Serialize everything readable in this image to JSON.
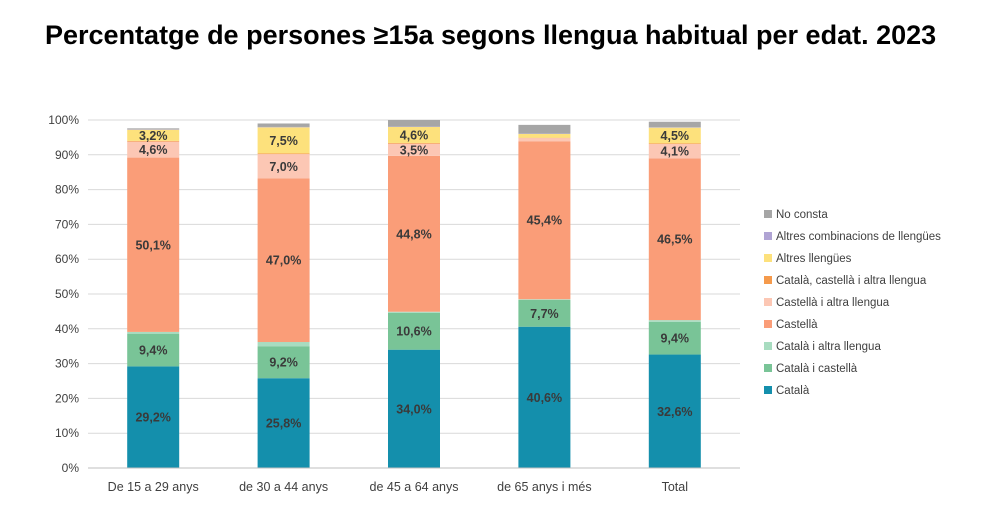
{
  "chart_data": {
    "type": "bar",
    "stacked": true,
    "title": "Percentatge de persones ≥15a segons llengua habitual per edat. 2023",
    "xlabel": "",
    "ylabel": "",
    "ylim": [
      0,
      100
    ],
    "yticks": [
      "0%",
      "10%",
      "20%",
      "30%",
      "40%",
      "50%",
      "60%",
      "70%",
      "80%",
      "90%",
      "100%"
    ],
    "grid": true,
    "legend_position": "right",
    "categories": [
      "De 15 a 29 anys",
      "de 30 a 44 anys",
      "de 45 a 64 anys",
      "de 65 anys i més",
      "Total"
    ],
    "series": [
      {
        "name": "Català",
        "color": "#148fac",
        "values": [
          29.2,
          25.8,
          34.0,
          40.6,
          32.6
        ],
        "labels": [
          "29,2%",
          "25,8%",
          "34,0%",
          "40,6%",
          "32,6%"
        ]
      },
      {
        "name": "Català i castellà",
        "color": "#79c497",
        "values": [
          9.4,
          9.2,
          10.6,
          7.7,
          9.4
        ],
        "labels": [
          "9,4%",
          "9,2%",
          "10,6%",
          "7,7%",
          "9,4%"
        ]
      },
      {
        "name": "Català i altra llengua",
        "color": "#a8dcc0",
        "values": [
          0.5,
          1.2,
          0.3,
          0.2,
          0.5
        ],
        "labels": [
          "",
          "",
          "",
          "",
          ""
        ]
      },
      {
        "name": "Castellà",
        "color": "#fa9d78",
        "values": [
          50.1,
          47.0,
          44.8,
          45.4,
          46.5
        ],
        "labels": [
          "50,1%",
          "47,0%",
          "44,8%",
          "45,4%",
          "46,5%"
        ]
      },
      {
        "name": "Castellà i altra llengua",
        "color": "#fcc7b4",
        "values": [
          4.6,
          7.0,
          3.5,
          0.9,
          4.1
        ],
        "labels": [
          "4,6%",
          "7,0%",
          "3,5%",
          "",
          "4,1%"
        ]
      },
      {
        "name": "Català, castellà i altra llengua",
        "color": "#f59a4c",
        "values": [
          0.2,
          0.2,
          0.2,
          0.1,
          0.2
        ],
        "labels": [
          "",
          "",
          "",
          "",
          ""
        ]
      },
      {
        "name": "Altres llengües",
        "color": "#fde17c",
        "values": [
          3.2,
          7.5,
          4.6,
          1.1,
          4.5
        ],
        "labels": [
          "3,2%",
          "7,5%",
          "4,6%",
          "",
          "4,5%"
        ]
      },
      {
        "name": "Altres combinacions de llengües",
        "color": "#b0a4d4",
        "values": [
          0.1,
          0.1,
          0.1,
          0.1,
          0.1
        ],
        "labels": [
          "",
          "",
          "",
          "",
          ""
        ]
      },
      {
        "name": "No consta",
        "color": "#a6a6a6",
        "values": [
          0.3,
          1.0,
          1.9,
          2.5,
          1.6
        ],
        "labels": [
          "",
          "",
          "",
          "",
          ""
        ]
      }
    ],
    "legend_order": [
      "No consta",
      "Altres combinacions de llengües",
      "Altres llengües",
      "Català, castellà i altra llengua",
      "Castellà i altra llengua",
      "Castellà",
      "Català i altra llengua",
      "Català i castellà",
      "Català"
    ]
  }
}
